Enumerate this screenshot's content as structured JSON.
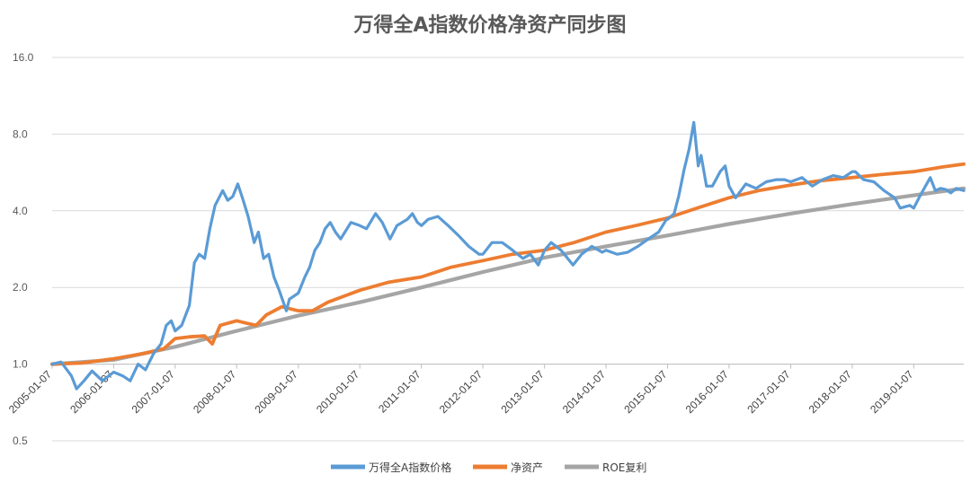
{
  "colors": {
    "index": "#5B9BD5",
    "netasset": "#ED7D31",
    "roe": "#A5A5A5",
    "grid": "#D9D9D9",
    "axis": "#BFBFBF"
  },
  "chart_data": {
    "type": "line",
    "title": "万得全A指数价格净资产同步图",
    "y_scale": "log2",
    "ylim": [
      0.5,
      16.0
    ],
    "y_ticks": [
      "0.5",
      "1.0",
      "2.0",
      "4.0",
      "8.0",
      "16.0"
    ],
    "y_tick_values": [
      0.5,
      1,
      2,
      4,
      8,
      16
    ],
    "x_tick_labels": [
      "2005-01-07",
      "2006-01-07",
      "2007-01-07",
      "2008-01-07",
      "2009-01-07",
      "2010-01-07",
      "2011-01-07",
      "2012-01-07",
      "2013-01-07",
      "2014-01-07",
      "2015-01-07",
      "2016-01-07",
      "2017-01-07",
      "2018-01-07",
      "2019-01-07"
    ],
    "xlim": [
      "2005-01-07",
      "2019-10-31"
    ],
    "grid": "horizontal",
    "legend_position": "bottom",
    "series": [
      {
        "name": "万得全A指数价格",
        "color_key": "index",
        "points": [
          [
            "2005-01-07",
            1.0
          ],
          [
            "2005-03-01",
            1.02
          ],
          [
            "2005-05-01",
            0.9
          ],
          [
            "2005-06-01",
            0.8
          ],
          [
            "2005-07-15",
            0.86
          ],
          [
            "2005-09-01",
            0.94
          ],
          [
            "2005-11-01",
            0.86
          ],
          [
            "2006-01-07",
            0.93
          ],
          [
            "2006-03-01",
            0.9
          ],
          [
            "2006-04-15",
            0.86
          ],
          [
            "2006-06-01",
            1.0
          ],
          [
            "2006-07-15",
            0.95
          ],
          [
            "2006-09-01",
            1.1
          ],
          [
            "2006-10-15",
            1.2
          ],
          [
            "2006-11-15",
            1.42
          ],
          [
            "2006-12-15",
            1.48
          ],
          [
            "2007-01-07",
            1.35
          ],
          [
            "2007-02-15",
            1.42
          ],
          [
            "2007-04-01",
            1.7
          ],
          [
            "2007-05-01",
            2.5
          ],
          [
            "2007-05-30",
            2.7
          ],
          [
            "2007-07-01",
            2.6
          ],
          [
            "2007-08-01",
            3.4
          ],
          [
            "2007-09-01",
            4.2
          ],
          [
            "2007-10-16",
            4.8
          ],
          [
            "2007-11-15",
            4.4
          ],
          [
            "2007-12-15",
            4.55
          ],
          [
            "2008-01-14",
            5.1
          ],
          [
            "2008-02-15",
            4.4
          ],
          [
            "2008-03-15",
            3.8
          ],
          [
            "2008-04-20",
            3.0
          ],
          [
            "2008-05-15",
            3.3
          ],
          [
            "2008-06-15",
            2.6
          ],
          [
            "2008-07-15",
            2.7
          ],
          [
            "2008-08-15",
            2.2
          ],
          [
            "2008-09-15",
            1.95
          ],
          [
            "2008-10-28",
            1.62
          ],
          [
            "2008-11-15",
            1.8
          ],
          [
            "2009-01-07",
            1.9
          ],
          [
            "2009-02-15",
            2.2
          ],
          [
            "2009-03-15",
            2.4
          ],
          [
            "2009-04-15",
            2.8
          ],
          [
            "2009-05-15",
            3.0
          ],
          [
            "2009-06-15",
            3.4
          ],
          [
            "2009-07-15",
            3.6
          ],
          [
            "2009-08-15",
            3.3
          ],
          [
            "2009-09-15",
            3.1
          ],
          [
            "2009-11-15",
            3.6
          ],
          [
            "2010-01-07",
            3.5
          ],
          [
            "2010-02-15",
            3.4
          ],
          [
            "2010-04-10",
            3.9
          ],
          [
            "2010-05-20",
            3.6
          ],
          [
            "2010-07-05",
            3.1
          ],
          [
            "2010-08-15",
            3.5
          ],
          [
            "2010-10-15",
            3.7
          ],
          [
            "2010-11-15",
            3.9
          ],
          [
            "2010-12-15",
            3.6
          ],
          [
            "2011-01-07",
            3.5
          ],
          [
            "2011-02-15",
            3.7
          ],
          [
            "2011-04-15",
            3.8
          ],
          [
            "2011-06-15",
            3.5
          ],
          [
            "2011-08-15",
            3.2
          ],
          [
            "2011-10-15",
            2.9
          ],
          [
            "2011-12-15",
            2.7
          ],
          [
            "2012-01-07",
            2.7
          ],
          [
            "2012-03-01",
            3.0
          ],
          [
            "2012-05-01",
            3.0
          ],
          [
            "2012-07-01",
            2.8
          ],
          [
            "2012-09-01",
            2.6
          ],
          [
            "2012-10-15",
            2.7
          ],
          [
            "2012-12-01",
            2.45
          ],
          [
            "2013-01-07",
            2.8
          ],
          [
            "2013-02-15",
            3.0
          ],
          [
            "2013-04-15",
            2.8
          ],
          [
            "2013-06-25",
            2.45
          ],
          [
            "2013-08-15",
            2.7
          ],
          [
            "2013-10-15",
            2.9
          ],
          [
            "2013-12-15",
            2.75
          ],
          [
            "2014-01-07",
            2.8
          ],
          [
            "2014-03-15",
            2.7
          ],
          [
            "2014-05-15",
            2.75
          ],
          [
            "2014-07-15",
            2.9
          ],
          [
            "2014-09-15",
            3.1
          ],
          [
            "2014-11-15",
            3.3
          ],
          [
            "2014-12-31",
            3.7
          ],
          [
            "2015-01-07",
            3.7
          ],
          [
            "2015-02-15",
            3.9
          ],
          [
            "2015-03-15",
            4.6
          ],
          [
            "2015-04-15",
            5.8
          ],
          [
            "2015-05-15",
            7.0
          ],
          [
            "2015-06-12",
            8.9
          ],
          [
            "2015-07-08",
            6.0
          ],
          [
            "2015-07-25",
            6.6
          ],
          [
            "2015-08-26",
            5.0
          ],
          [
            "2015-09-30",
            5.0
          ],
          [
            "2015-11-15",
            5.7
          ],
          [
            "2015-12-15",
            6.0
          ],
          [
            "2016-01-07",
            5.0
          ],
          [
            "2016-02-15",
            4.5
          ],
          [
            "2016-04-15",
            5.1
          ],
          [
            "2016-06-15",
            4.9
          ],
          [
            "2016-08-15",
            5.2
          ],
          [
            "2016-10-15",
            5.3
          ],
          [
            "2016-12-01",
            5.3
          ],
          [
            "2017-01-07",
            5.2
          ],
          [
            "2017-03-15",
            5.4
          ],
          [
            "2017-05-15",
            5.0
          ],
          [
            "2017-07-15",
            5.3
          ],
          [
            "2017-09-15",
            5.5
          ],
          [
            "2017-11-15",
            5.4
          ],
          [
            "2018-01-07",
            5.7
          ],
          [
            "2018-01-25",
            5.7
          ],
          [
            "2018-03-15",
            5.3
          ],
          [
            "2018-05-15",
            5.2
          ],
          [
            "2018-07-15",
            4.8
          ],
          [
            "2018-09-15",
            4.5
          ],
          [
            "2018-10-18",
            4.1
          ],
          [
            "2018-12-15",
            4.2
          ],
          [
            "2019-01-07",
            4.1
          ],
          [
            "2019-02-15",
            4.6
          ],
          [
            "2019-04-15",
            5.4
          ],
          [
            "2019-05-15",
            4.8
          ],
          [
            "2019-06-15",
            4.9
          ],
          [
            "2019-07-15",
            4.85
          ],
          [
            "2019-08-15",
            4.7
          ],
          [
            "2019-09-15",
            4.9
          ],
          [
            "2019-10-31",
            4.8
          ]
        ]
      },
      {
        "name": "净资产",
        "color_key": "netasset",
        "points": [
          [
            "2005-01-07",
            1.0
          ],
          [
            "2005-07-01",
            1.01
          ],
          [
            "2006-01-07",
            1.05
          ],
          [
            "2006-07-01",
            1.1
          ],
          [
            "2006-11-01",
            1.15
          ],
          [
            "2007-01-07",
            1.26
          ],
          [
            "2007-04-01",
            1.28
          ],
          [
            "2007-07-01",
            1.29
          ],
          [
            "2007-08-15",
            1.2
          ],
          [
            "2007-10-01",
            1.42
          ],
          [
            "2008-01-07",
            1.48
          ],
          [
            "2008-03-01",
            1.45
          ],
          [
            "2008-05-01",
            1.42
          ],
          [
            "2008-07-01",
            1.56
          ],
          [
            "2008-10-01",
            1.68
          ],
          [
            "2009-01-07",
            1.62
          ],
          [
            "2009-04-01",
            1.62
          ],
          [
            "2009-07-01",
            1.75
          ],
          [
            "2010-01-07",
            1.95
          ],
          [
            "2010-07-01",
            2.1
          ],
          [
            "2011-01-07",
            2.2
          ],
          [
            "2011-07-01",
            2.4
          ],
          [
            "2012-01-07",
            2.55
          ],
          [
            "2012-07-01",
            2.7
          ],
          [
            "2013-01-07",
            2.8
          ],
          [
            "2013-07-01",
            3.0
          ],
          [
            "2014-01-07",
            3.3
          ],
          [
            "2014-07-01",
            3.5
          ],
          [
            "2015-01-07",
            3.75
          ],
          [
            "2015-07-01",
            4.1
          ],
          [
            "2016-01-07",
            4.5
          ],
          [
            "2016-07-01",
            4.8
          ],
          [
            "2017-01-07",
            5.05
          ],
          [
            "2017-07-01",
            5.25
          ],
          [
            "2018-01-07",
            5.4
          ],
          [
            "2018-07-01",
            5.55
          ],
          [
            "2019-01-07",
            5.7
          ],
          [
            "2019-07-01",
            5.95
          ],
          [
            "2019-10-31",
            6.1
          ]
        ]
      },
      {
        "name": "ROE复利",
        "color_key": "roe",
        "points": [
          [
            "2005-01-07",
            1.0
          ],
          [
            "2006-01-07",
            1.04
          ],
          [
            "2007-01-07",
            1.17
          ],
          [
            "2008-01-07",
            1.35
          ],
          [
            "2009-01-07",
            1.55
          ],
          [
            "2010-01-07",
            1.75
          ],
          [
            "2011-01-07",
            2.0
          ],
          [
            "2012-01-07",
            2.3
          ],
          [
            "2013-01-07",
            2.62
          ],
          [
            "2014-01-07",
            2.9
          ],
          [
            "2015-01-07",
            3.2
          ],
          [
            "2016-01-07",
            3.55
          ],
          [
            "2017-01-07",
            3.9
          ],
          [
            "2018-01-07",
            4.25
          ],
          [
            "2019-01-07",
            4.6
          ],
          [
            "2019-10-31",
            4.9
          ]
        ]
      }
    ]
  }
}
